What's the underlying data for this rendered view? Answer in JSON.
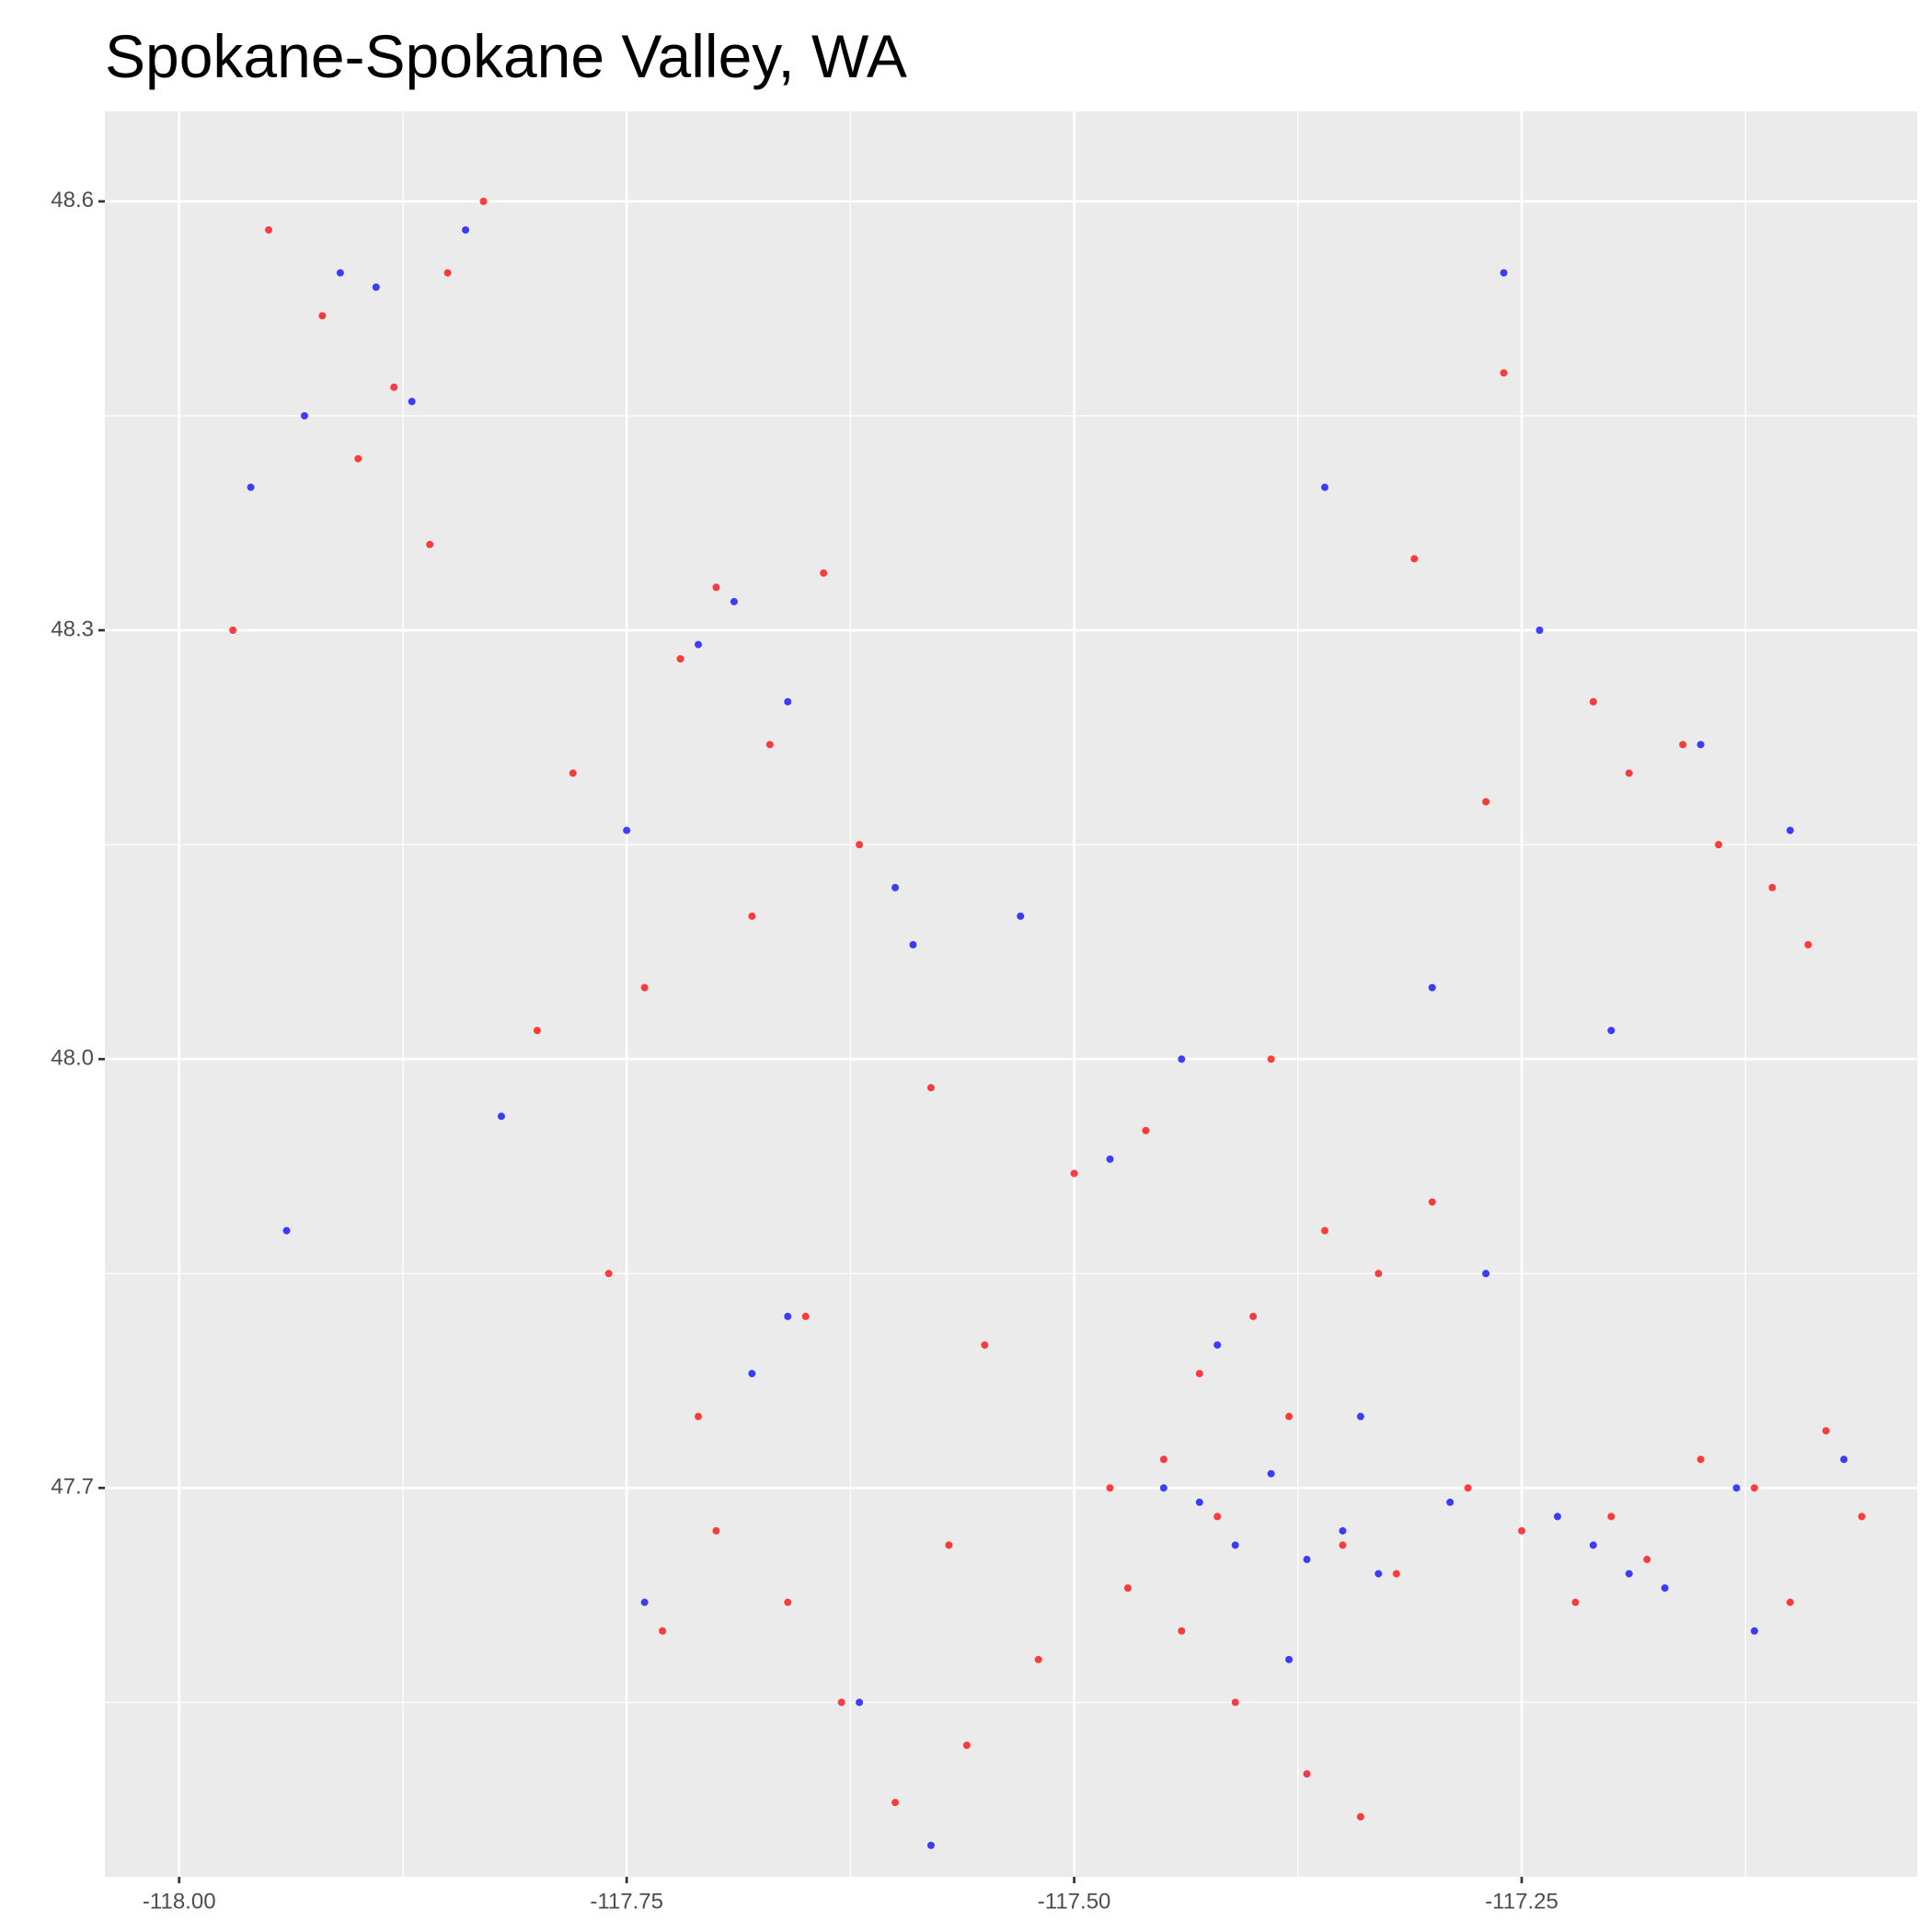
{
  "chart_data": {
    "type": "scatter",
    "title": "Spokane-Spokane Valley, WA",
    "xlim": [
      -118.0415,
      -117.029
    ],
    "ylim": [
      47.428,
      48.663
    ],
    "xticks": [
      {
        "value": -118,
        "label": "-118.00"
      },
      -117.75,
      {
        "value": -117.5,
        "label": "-117.50"
      },
      -117.25
    ],
    "yticks": [
      47.7,
      {
        "value": 48,
        "label": "48.0"
      },
      48.3,
      48.6
    ],
    "minor_xticks": [
      -117.875,
      -117.625,
      -117.375,
      -117.125
    ],
    "minor_yticks": [
      47.55,
      47.85,
      48.15,
      48.45
    ],
    "grid": true,
    "background": "#ebebeb",
    "series": [
      {
        "color": "#ff0000",
        "x": [
          -117.95,
          -117.92,
          -117.88,
          -117.85,
          -117.83,
          -117.97,
          -117.9,
          -117.86,
          -117.78,
          -117.72,
          -117.7,
          -117.67,
          -117.64,
          -117.62,
          -117.68,
          -117.74,
          -117.8,
          -117.76,
          -117.58,
          -117.55,
          -117.48,
          -117.45,
          -117.42,
          -117.4,
          -117.38,
          -117.35,
          -117.32,
          -117.3,
          -117.28,
          -117.25,
          -117.22,
          -117.2,
          -117.18,
          -117.15,
          -117.12,
          -117.1,
          -117.08,
          -117.06,
          -117.44,
          -117.41,
          -117.37,
          -117.34,
          -117.47,
          -117.52,
          -117.56,
          -117.6,
          -117.63,
          -117.66,
          -117.7,
          -117.73,
          -117.5,
          -117.46,
          -117.39,
          -117.33,
          -117.27,
          -117.21,
          -117.16,
          -117.11,
          -117.31,
          -117.26,
          -117.19,
          -117.14,
          -117.09,
          -117.36,
          -117.43,
          -117.57,
          -117.65,
          -117.71
        ],
        "values": [
          48.58,
          48.52,
          48.47,
          48.55,
          48.6,
          48.3,
          48.42,
          48.36,
          48.2,
          48.28,
          48.33,
          48.22,
          48.34,
          48.15,
          48.1,
          48.05,
          48.02,
          47.85,
          47.98,
          47.8,
          47.7,
          47.72,
          47.68,
          47.82,
          47.75,
          47.66,
          47.64,
          47.9,
          47.7,
          47.67,
          47.62,
          47.68,
          47.65,
          47.72,
          47.7,
          47.62,
          47.74,
          47.68,
          47.6,
          47.55,
          47.5,
          47.47,
          47.63,
          47.58,
          47.52,
          47.48,
          47.55,
          47.62,
          47.67,
          47.6,
          47.92,
          47.95,
          48.0,
          47.85,
          48.18,
          48.25,
          48.22,
          48.12,
          48.35,
          48.48,
          48.2,
          48.15,
          48.08,
          47.88,
          47.78,
          47.66,
          47.82,
          47.75
        ]
      },
      {
        "color": "#0000ff",
        "x": [
          -117.91,
          -117.89,
          -117.87,
          -117.93,
          -117.96,
          -117.84,
          -117.69,
          -117.71,
          -117.66,
          -117.6,
          -117.59,
          -117.75,
          -117.82,
          -117.94,
          -117.45,
          -117.43,
          -117.41,
          -117.39,
          -117.37,
          -117.35,
          -117.33,
          -117.23,
          -117.21,
          -117.19,
          -117.17,
          -117.13,
          -117.07,
          -117.29,
          -117.24,
          -117.15,
          -117.1,
          -117.58,
          -117.62,
          -117.66,
          -117.48,
          -117.42,
          -117.38,
          -117.3,
          -117.26,
          -117.36,
          -117.44,
          -117.53,
          -117.27,
          -117.34,
          -117.2,
          -117.12,
          -117.68,
          -117.74
        ],
        "values": [
          48.55,
          48.54,
          48.46,
          48.45,
          48.4,
          48.58,
          48.32,
          48.29,
          48.25,
          48.12,
          48.08,
          48.16,
          47.96,
          47.88,
          47.7,
          47.69,
          47.66,
          47.71,
          47.65,
          47.67,
          47.64,
          47.68,
          47.66,
          47.64,
          47.63,
          47.7,
          47.72,
          47.69,
          48.3,
          48.22,
          48.16,
          47.45,
          47.55,
          47.82,
          47.93,
          47.8,
          47.58,
          48.05,
          48.55,
          48.4,
          48.0,
          48.1,
          47.85,
          47.75,
          48.02,
          47.6,
          47.78,
          47.62
        ]
      }
    ]
  }
}
